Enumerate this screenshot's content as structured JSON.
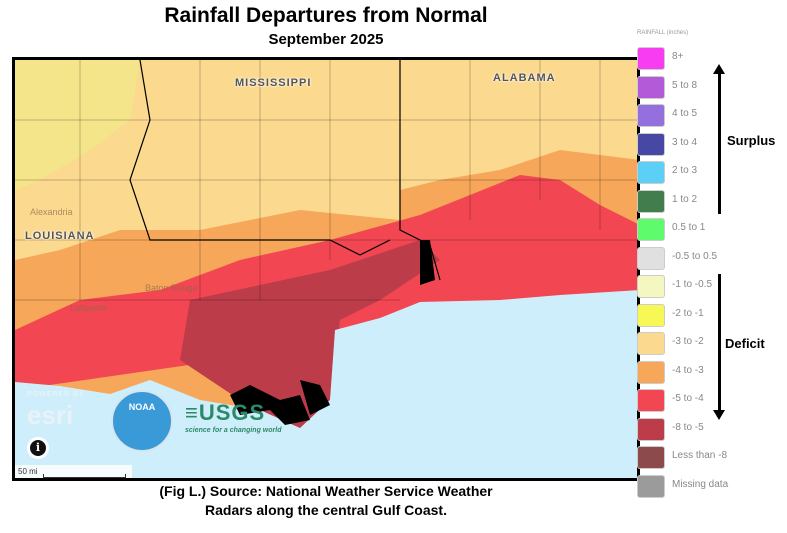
{
  "title": "Rainfall Departures from Normal",
  "subtitle": "September 2025",
  "map": {
    "state_labels": [
      "MISSISSIPPI",
      "ALABAMA",
      "LOUISIANA"
    ],
    "city_labels": [
      "Baton Rouge",
      "Lafayette",
      "Alexandria"
    ],
    "scale_label": "50 mi",
    "info_label": "i",
    "logos": {
      "esri_powered": "POWERED BY",
      "esri": "esri",
      "noaa": "NOAA",
      "usgs": "≡USGS",
      "usgs_tagline": "science for a changing world"
    }
  },
  "legend": {
    "title": "RAINFALL (inches)",
    "items": [
      {
        "label": "8+",
        "color": "#f73cf1"
      },
      {
        "label": "5 to 8",
        "color": "#b25ad8"
      },
      {
        "label": "4 to 5",
        "color": "#9470de"
      },
      {
        "label": "3 to 4",
        "color": "#4648a4"
      },
      {
        "label": "2 to 3",
        "color": "#5ccff7"
      },
      {
        "label": "1 to 2",
        "color": "#427d4d"
      },
      {
        "label": "0.5 to 1",
        "color": "#5efb6c"
      },
      {
        "label": "-0.5 to 0.5",
        "color": "#e0e0e0"
      },
      {
        "label": "-1 to -0.5",
        "color": "#f4f7bf"
      },
      {
        "label": "-2 to -1",
        "color": "#f7f855"
      },
      {
        "label": "-3 to -2",
        "color": "#fbd98f"
      },
      {
        "label": "-4 to -3",
        "color": "#f6a75a"
      },
      {
        "label": "-5 to -4",
        "color": "#f24653"
      },
      {
        "label": "-8 to -5",
        "color": "#bc3c4a"
      },
      {
        "label": "Less than -8",
        "color": "#8d4a4c"
      },
      {
        "label": "Missing data",
        "color": "#9b9b9b"
      }
    ],
    "surplus_label": "Surplus",
    "deficit_label": "Deficit"
  },
  "caption": [
    "(Fig L.) Source: National Weather Service Weather",
    "Radars along the central Gulf Coast."
  ]
}
